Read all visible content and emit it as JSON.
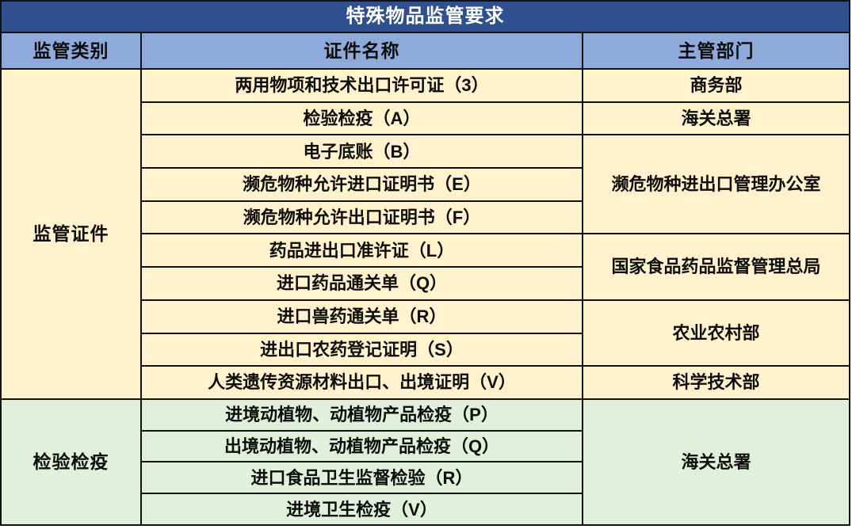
{
  "colors": {
    "title_bg": "#2F4F8F",
    "title_text": "#FFFFFF",
    "header_bg": "#8EAADB",
    "section_regulatory_bg": "#FFF2CC",
    "section_quarantine_bg": "#E2EFDA",
    "grid_line": "#111111",
    "body_text": "#0D0D0D"
  },
  "table": {
    "title": "特殊物品监管要求",
    "headers": {
      "category": "监管类别",
      "cert": "证件名称",
      "dept": "主管部门"
    },
    "sections": [
      {
        "category": "监管证件",
        "groups": [
          {
            "certs": [
              "两用物项和技术出口许可证（3）"
            ],
            "dept": "商务部"
          },
          {
            "certs": [
              "检验检疫（A）"
            ],
            "dept": "海关总署"
          },
          {
            "certs": [
              "电子底账（B）",
              "濒危物种允许进口证明书（E）",
              "濒危物种允许出口证明书（F）"
            ],
            "dept": "濒危物种进出口管理办公室"
          },
          {
            "certs": [
              "药品进出口准许证（L）",
              "进口药品通关单（Q）"
            ],
            "dept": "国家食品药品监督管理总局"
          },
          {
            "certs": [
              "进口兽药通关单（R）",
              "进出口农药登记证明（S）"
            ],
            "dept": "农业农村部"
          },
          {
            "certs": [
              "人类遗传资源材料出口、出境证明（V）"
            ],
            "dept": "科学技术部"
          }
        ]
      },
      {
        "category": "检验检疫",
        "groups": [
          {
            "certs": [
              "进境动植物、动植物产品检疫（P）",
              "出境动植物、动植物产品检疫（Q）",
              "进口食品卫生监督检验（R）",
              "进境卫生检疫（V）"
            ],
            "dept": "海关总署"
          }
        ]
      }
    ]
  }
}
